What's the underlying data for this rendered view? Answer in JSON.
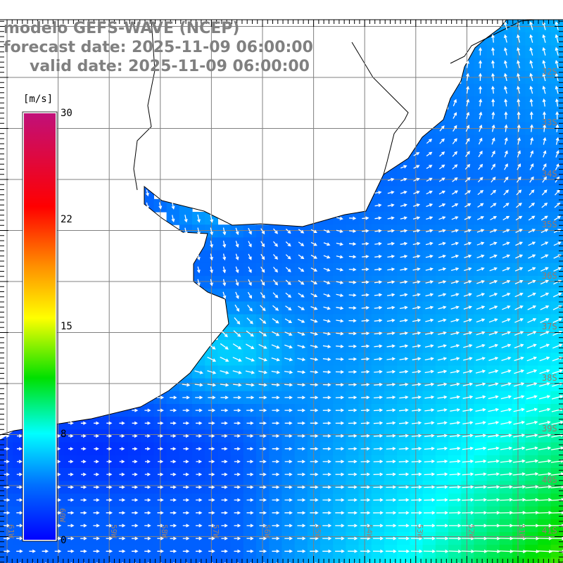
{
  "title": {
    "model": "modelo GEFS-WAVE (NCEP)",
    "forecast": "forecast date: 2025-11-09 06:00:00",
    "valid": "valid date: 2025-11-09 06:00:00"
  },
  "colorbar": {
    "unit": "[m/s]",
    "ticks": [
      "0",
      "8",
      "15",
      "22",
      "30"
    ],
    "range": [
      0,
      30
    ],
    "colors": {
      "low": "#0000ff",
      "cyan": "#00ffff",
      "green": "#00e000",
      "yellow": "#ffff00",
      "orange": "#ff8000",
      "red": "#ff0000",
      "high": "#c0107a"
    }
  },
  "axes": {
    "lon_labels": [
      "61W",
      "60W",
      "59W",
      "58W",
      "57W",
      "56W",
      "55W",
      "54W",
      "53W",
      "52W",
      "51W"
    ],
    "lat_labels": [
      "32S",
      "33S",
      "34S",
      "35S",
      "36S",
      "37S",
      "38S",
      "39S",
      "40S",
      "41S"
    ]
  },
  "colors": {
    "land": "#ffffff",
    "coast": "#000000",
    "grid": "#808080",
    "arrow": "#ffffff"
  }
}
